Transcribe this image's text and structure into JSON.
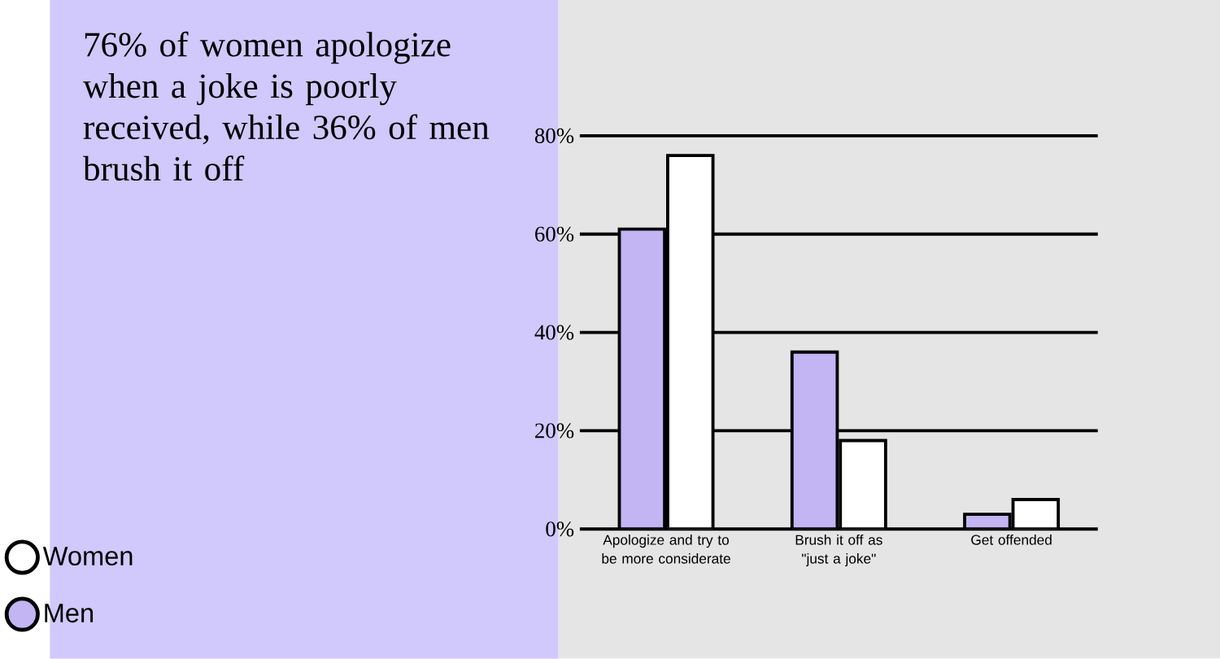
{
  "chart_data": {
    "type": "bar",
    "title": "76% of women apologize when a joke is poorly received, while 36% of men brush it off",
    "categories": [
      "Apologize and try to be more considerate",
      "Brush it off as \"just a joke\"",
      "Get offended"
    ],
    "series": [
      {
        "name": "Men",
        "color": "#c3b4f4",
        "values": [
          61,
          36,
          3
        ]
      },
      {
        "name": "Women",
        "color": "#ffffff",
        "values": [
          76,
          18,
          6
        ]
      }
    ],
    "ylim": [
      0,
      80
    ],
    "yticks": [
      {
        "value": 0,
        "label": "0%"
      },
      {
        "value": 20,
        "label": "20%"
      },
      {
        "value": 40,
        "label": "40%"
      },
      {
        "value": 60,
        "label": "60%"
      },
      {
        "value": 80,
        "label": "80%"
      }
    ],
    "grid": "y",
    "legend": "bottom left"
  }
}
